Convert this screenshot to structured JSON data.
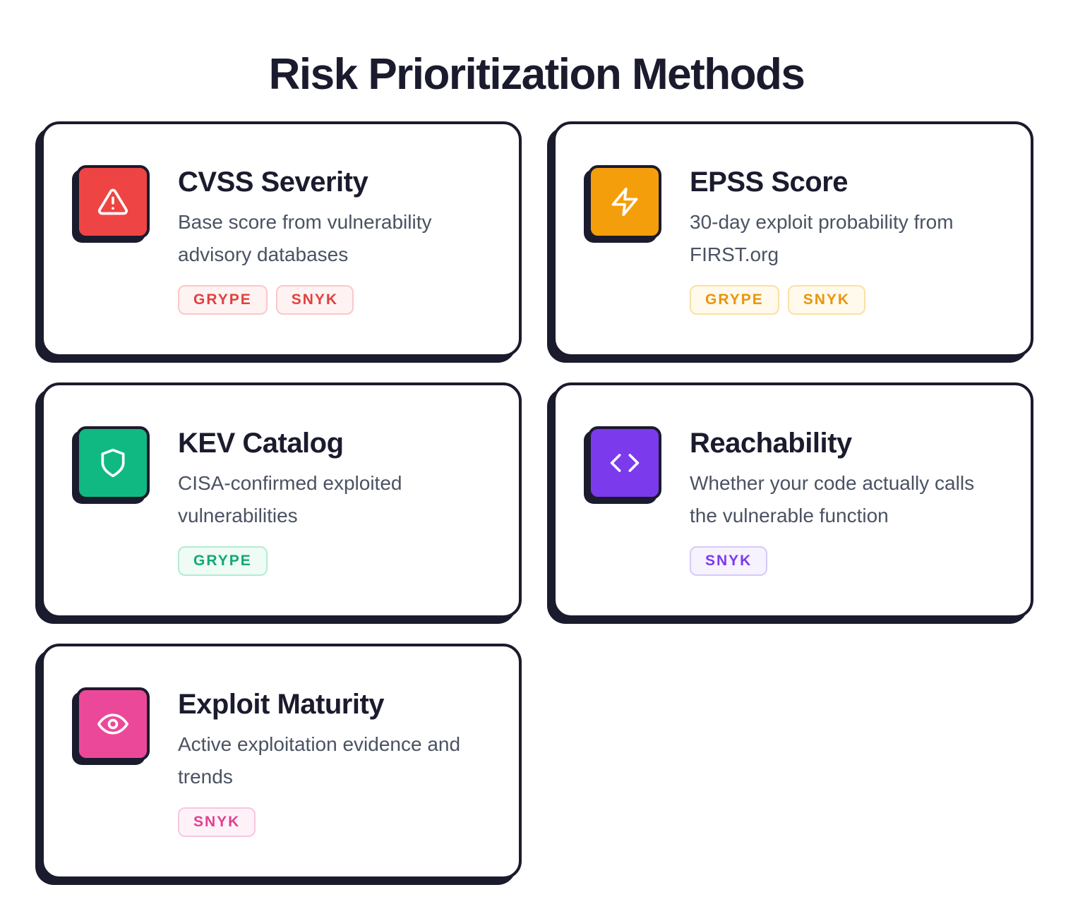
{
  "title": "Risk Prioritization Methods",
  "cards": [
    {
      "title": "CVSS Severity",
      "description": "Base score from vulnerability advisory databases",
      "icon": "alert-triangle-icon",
      "color": "#ef4444",
      "tag_text": "#e0413f",
      "tag_bg": "#fef2f2",
      "tag_border": "#fbc8c8",
      "tags": [
        "GRYPE",
        "SNYK"
      ]
    },
    {
      "title": "EPSS Score",
      "description": "30-day exploit probability from FIRST.org",
      "icon": "lightning-bolt-icon",
      "color": "#f59e0b",
      "tag_text": "#e8960c",
      "tag_bg": "#fffaeb",
      "tag_border": "#fbe0a6",
      "tags": [
        "GRYPE",
        "SNYK"
      ]
    },
    {
      "title": "KEV Catalog",
      "description": "CISA-confirmed exploited vulnerabilities",
      "icon": "shield-icon",
      "color": "#10b981",
      "tag_text": "#12a877",
      "tag_bg": "#effbf5",
      "tag_border": "#b5ebd4",
      "tags": [
        "GRYPE"
      ]
    },
    {
      "title": "Reachability",
      "description": "Whether your code actually calls the vulnerable function",
      "icon": "code-brackets-icon",
      "color": "#7c3aed",
      "tag_text": "#7c3aed",
      "tag_bg": "#f6f2fe",
      "tag_border": "#d8c9fa",
      "tags": [
        "SNYK"
      ]
    },
    {
      "title": "Exploit Maturity",
      "description": "Active exploitation evidence and trends",
      "icon": "eye-icon",
      "color": "#ec4899",
      "tag_text": "#e23f92",
      "tag_bg": "#fef2f8",
      "tag_border": "#f8c6df",
      "tags": [
        "SNYK"
      ]
    }
  ]
}
